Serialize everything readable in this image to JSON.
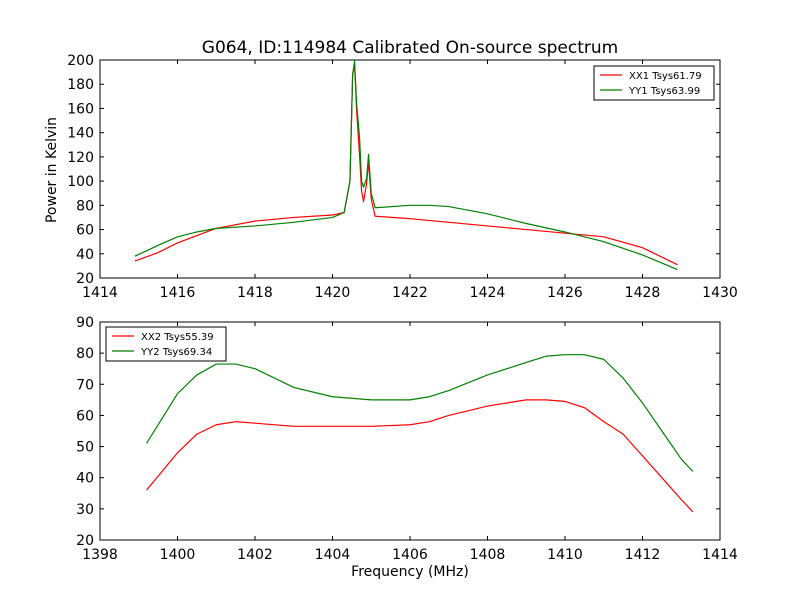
{
  "chart_data": [
    {
      "type": "line",
      "title": "G064, ID:114984 Calibrated On-source spectrum",
      "xlabel": "",
      "ylabel": "Power in Kelvin",
      "xlim": [
        1414,
        1430
      ],
      "ylim": [
        20,
        200
      ],
      "xticks": [
        "1414",
        "1416",
        "1418",
        "1420",
        "1422",
        "1424",
        "1426",
        "1428",
        "1430"
      ],
      "yticks": [
        "20",
        "40",
        "60",
        "80",
        "100",
        "120",
        "140",
        "160",
        "180",
        "200"
      ],
      "legend_position": "top-right",
      "series": [
        {
          "name": "XX1 Tsys61.79",
          "color": "#ff0000",
          "x": [
            1414.9,
            1415.5,
            1416.0,
            1416.5,
            1417.0,
            1418.0,
            1419.0,
            1420.0,
            1420.3,
            1420.45,
            1420.52,
            1420.57,
            1420.62,
            1420.7,
            1420.75,
            1420.8,
            1420.88,
            1420.93,
            1421.0,
            1421.1,
            1422.0,
            1423.0,
            1424.0,
            1425.0,
            1426.0,
            1427.0,
            1428.0,
            1428.9
          ],
          "y": [
            34,
            41,
            49,
            55,
            61,
            67,
            70,
            72,
            74,
            100,
            188,
            196,
            160,
            120,
            92,
            83,
            98,
            116,
            85,
            71,
            69,
            66,
            63,
            60,
            57,
            54,
            45,
            31
          ]
        },
        {
          "name": "YY1 Tsys63.99",
          "color": "#008000",
          "x": [
            1414.9,
            1415.5,
            1416.0,
            1416.5,
            1417.0,
            1418.0,
            1419.0,
            1420.0,
            1420.3,
            1420.45,
            1420.52,
            1420.57,
            1420.62,
            1420.7,
            1420.75,
            1420.8,
            1420.88,
            1420.93,
            1421.0,
            1421.1,
            1422.0,
            1422.5,
            1423.0,
            1424.0,
            1425.0,
            1426.0,
            1427.0,
            1428.0,
            1428.9
          ],
          "y": [
            38,
            47,
            54,
            58,
            61,
            63,
            66,
            70,
            74,
            100,
            188,
            199,
            165,
            135,
            100,
            95,
            102,
            122,
            90,
            78,
            80,
            80,
            79,
            73,
            65,
            58,
            50,
            39,
            27
          ]
        }
      ]
    },
    {
      "type": "line",
      "title": "",
      "xlabel": "Frequency (MHz)",
      "ylabel": "",
      "xlim": [
        1398,
        1414
      ],
      "ylim": [
        20,
        90
      ],
      "xticks": [
        "1398",
        "1400",
        "1402",
        "1404",
        "1406",
        "1408",
        "1410",
        "1412",
        "1414"
      ],
      "yticks": [
        "20",
        "30",
        "40",
        "50",
        "60",
        "70",
        "80",
        "90"
      ],
      "legend_position": "top-left",
      "series": [
        {
          "name": "XX2 Tsys55.39",
          "color": "#ff0000",
          "x": [
            1399.2,
            1399.6,
            1400.0,
            1400.5,
            1401.0,
            1401.5,
            1402.0,
            1403.0,
            1404.0,
            1405.0,
            1406.0,
            1406.5,
            1407.0,
            1408.0,
            1409.0,
            1409.5,
            1410.0,
            1410.5,
            1411.0,
            1411.5,
            1412.0,
            1412.5,
            1413.0,
            1413.3
          ],
          "y": [
            36,
            42,
            48,
            54,
            57,
            58,
            57.5,
            56.5,
            56.5,
            56.5,
            57,
            58,
            60,
            63,
            65,
            65,
            64.5,
            62.5,
            58,
            54,
            47,
            40,
            33,
            29
          ]
        },
        {
          "name": "YY2 Tsys69.34",
          "color": "#008000",
          "x": [
            1399.2,
            1399.6,
            1400.0,
            1400.5,
            1401.0,
            1401.5,
            1402.0,
            1403.0,
            1404.0,
            1405.0,
            1406.0,
            1406.5,
            1407.0,
            1408.0,
            1409.0,
            1409.5,
            1410.0,
            1410.5,
            1411.0,
            1411.5,
            1412.0,
            1412.5,
            1413.0,
            1413.3
          ],
          "y": [
            51,
            59,
            67,
            73,
            76.5,
            76.5,
            75,
            69,
            66,
            65,
            65,
            66,
            68,
            73,
            77,
            79,
            79.5,
            79.5,
            78,
            72,
            64,
            55,
            46,
            42
          ]
        }
      ]
    }
  ]
}
